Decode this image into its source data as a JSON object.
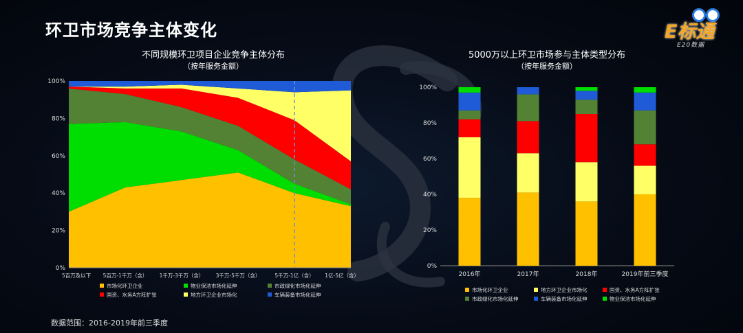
{
  "page": {
    "title": "环卫市场竞争主体变化",
    "footer": "数据范围：2016-2019年前三季度",
    "logo": {
      "brand": "E标通",
      "sub": "E20数据"
    }
  },
  "colors": {
    "market_enterprise": "#ffc000",
    "property_cleaning": "#00dd00",
    "municipal_greening": "#548235",
    "state_owned": "#ff0000",
    "local_enterprise": "#ffff66",
    "vehicle_equipment": "#1f5bd6"
  },
  "chart_data": [
    {
      "type": "area",
      "stacked": true,
      "title": "不同规模环卫项目企业竞争主体分布",
      "subtitle": "（按年服务金额）",
      "x": [
        "5百万及以下",
        "5百万-1千万（含）",
        "1千万-3千万（含）",
        "3千万-5千万（含）",
        "5千万-1亿（含）",
        "1亿-5亿（含）"
      ],
      "ylim": [
        0,
        100
      ],
      "yticks": [
        "0%",
        "20%",
        "40%",
        "60%",
        "80%",
        "100%"
      ],
      "marker_category": "5千万-1亿（含）",
      "series": [
        {
          "name": "市场化环卫企业",
          "color": "#ffc000",
          "values": [
            30,
            43,
            47,
            51,
            40,
            33
          ]
        },
        {
          "name": "物业保洁市场化延伸",
          "color": "#00dd00",
          "values": [
            47,
            35,
            26,
            12,
            5,
            1
          ]
        },
        {
          "name": "市政绿化市场化延伸",
          "color": "#548235",
          "values": [
            19,
            15,
            13,
            13,
            13,
            8
          ]
        },
        {
          "name": "国资、水务A方阵扩张",
          "color": "#ff0000",
          "values": [
            1,
            3,
            10,
            15,
            21,
            15
          ]
        },
        {
          "name": "地方环卫企业市场化",
          "color": "#ffff66",
          "values": [
            0,
            1,
            2,
            5,
            15,
            38
          ]
        },
        {
          "name": "车辆装备市场化延伸",
          "color": "#1f5bd6",
          "values": [
            3,
            3,
            2,
            4,
            6,
            5
          ]
        }
      ],
      "legend": [
        "市场化环卫企业",
        "物业保洁市场化延伸",
        "市政绿化市场化延伸",
        "国资、水务A方阵扩张",
        "地方环卫企业市场化",
        "车辆装备市场化延伸"
      ],
      "legend_position": "bottom"
    },
    {
      "type": "bar",
      "stacked": true,
      "title": "5000万以上环卫市场参与主体类型分布",
      "subtitle": "（按年服务金额）",
      "categories": [
        "2016年",
        "2017年",
        "2018年",
        "2019年前三季度"
      ],
      "ylim": [
        0,
        100
      ],
      "yticks": [
        "0%",
        "20%",
        "40%",
        "60%",
        "80%",
        "100%"
      ],
      "series": [
        {
          "name": "市场化环卫企业",
          "color": "#ffc000",
          "values": [
            38,
            41,
            36,
            40
          ]
        },
        {
          "name": "地方环卫企业市场化",
          "color": "#ffff66",
          "values": [
            34,
            22,
            22,
            16
          ]
        },
        {
          "name": "国资、水务A方阵扩张",
          "color": "#ff0000",
          "values": [
            10,
            18,
            27,
            12
          ]
        },
        {
          "name": "市政绿化市场化延伸",
          "color": "#548235",
          "values": [
            5,
            15,
            8,
            19
          ]
        },
        {
          "name": "车辆装备市场化延伸",
          "color": "#1f5bd6",
          "values": [
            10,
            4,
            5,
            10
          ]
        },
        {
          "name": "物业保洁市场化延伸",
          "color": "#00dd00",
          "values": [
            3,
            0,
            2,
            3
          ]
        }
      ],
      "legend": [
        "市场化环卫企业",
        "地方环卫企业市场化",
        "国资、水务A方阵扩张",
        "市政绿化市场化延伸",
        "车辆装备市场化延伸",
        "物业保洁市场化延伸"
      ],
      "legend_position": "bottom"
    }
  ]
}
